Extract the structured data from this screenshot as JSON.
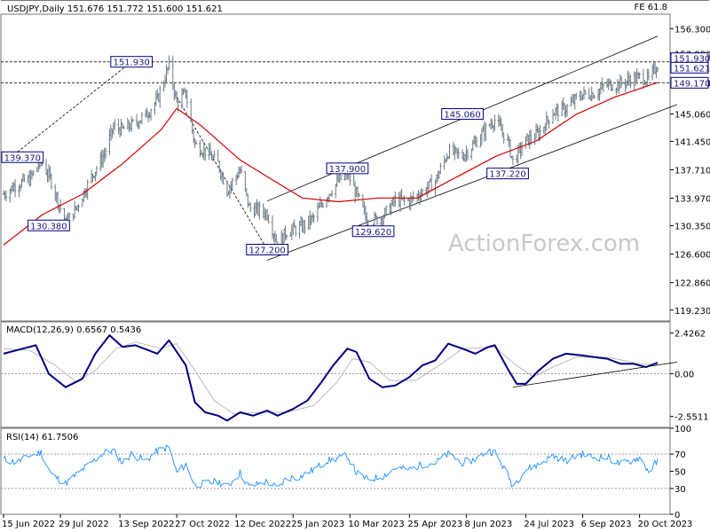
{
  "header": {
    "title": "USDJPY,Daily  151.676 151.772 151.600 151.621",
    "fe_label": "FE 61.8"
  },
  "watermark": "ActionForex.com",
  "chart_data": {
    "type": "candlestick",
    "price_panel": {
      "ylim": [
        117.8,
        158.2
      ],
      "y_ticks": [
        "156.300",
        "153.000",
        "149.170",
        "145.060",
        "141.450",
        "137.710",
        "133.970",
        "130.350",
        "126.600",
        "122.860",
        "119.230"
      ],
      "y_tick_values": [
        156.3,
        153.0,
        149.17,
        145.06,
        141.45,
        137.71,
        133.97,
        130.35,
        126.6,
        122.86,
        119.23
      ],
      "axis_badges": [
        {
          "label": "151.930",
          "value": 151.93
        },
        {
          "label": "151.621",
          "value": 151.621
        },
        {
          "label": "149.170",
          "value": 149.17
        }
      ],
      "horizontal_lines": [
        151.93,
        149.17
      ],
      "price_labels": [
        {
          "text": "139.370",
          "date": "2022-06-15",
          "value": 139.37
        },
        {
          "text": "130.380",
          "date": "2022-07-20",
          "value": 130.38
        },
        {
          "text": "151.930",
          "date": "2022-09-22",
          "value": 151.93
        },
        {
          "text": "127.200",
          "date": "2023-01-05",
          "value": 127.2
        },
        {
          "text": "137.900",
          "date": "2023-03-08",
          "value": 137.9
        },
        {
          "text": "129.620",
          "date": "2023-03-28",
          "value": 129.62
        },
        {
          "text": "145.060",
          "date": "2023-06-05",
          "value": 145.06
        },
        {
          "text": "137.220",
          "date": "2023-07-10",
          "value": 137.22
        }
      ],
      "close_series": {
        "name": "USDJPY",
        "points": [
          [
            "2022-06-15",
            134.5
          ],
          [
            "2022-06-25",
            135.8
          ],
          [
            "2022-07-05",
            136.4
          ],
          [
            "2022-07-14",
            138.9
          ],
          [
            "2022-07-22",
            136.2
          ],
          [
            "2022-08-02",
            130.6
          ],
          [
            "2022-08-10",
            132.6
          ],
          [
            "2022-08-22",
            136.8
          ],
          [
            "2022-09-01",
            139.8
          ],
          [
            "2022-09-08",
            143.3
          ],
          [
            "2022-09-15",
            143.0
          ],
          [
            "2022-09-22",
            143.6
          ],
          [
            "2022-10-03",
            144.9
          ],
          [
            "2022-10-12",
            146.9
          ],
          [
            "2022-10-21",
            151.5
          ],
          [
            "2022-10-27",
            146.5
          ],
          [
            "2022-11-03",
            147.8
          ],
          [
            "2022-11-10",
            141.0
          ],
          [
            "2022-11-18",
            140.2
          ],
          [
            "2022-11-28",
            138.5
          ],
          [
            "2022-12-05",
            135.0
          ],
          [
            "2022-12-15",
            137.7
          ],
          [
            "2022-12-22",
            132.7
          ],
          [
            "2023-01-05",
            132.0
          ],
          [
            "2023-01-13",
            127.9
          ],
          [
            "2023-01-20",
            129.6
          ],
          [
            "2023-01-31",
            130.1
          ],
          [
            "2023-02-10",
            131.4
          ],
          [
            "2023-02-20",
            134.3
          ],
          [
            "2023-03-01",
            136.2
          ],
          [
            "2023-03-08",
            137.2
          ],
          [
            "2023-03-15",
            134.5
          ],
          [
            "2023-03-24",
            130.7
          ],
          [
            "2023-04-04",
            131.5
          ],
          [
            "2023-04-14",
            133.7
          ],
          [
            "2023-04-25",
            133.6
          ],
          [
            "2023-05-05",
            134.8
          ],
          [
            "2023-05-15",
            136.2
          ],
          [
            "2023-05-25",
            140.1
          ],
          [
            "2023-06-05",
            139.5
          ],
          [
            "2023-06-15",
            141.3
          ],
          [
            "2023-06-25",
            143.5
          ],
          [
            "2023-06-30",
            144.3
          ],
          [
            "2023-07-10",
            141.5
          ],
          [
            "2023-07-14",
            138.8
          ],
          [
            "2023-07-24",
            141.5
          ],
          [
            "2023-08-03",
            142.5
          ],
          [
            "2023-08-14",
            145.3
          ],
          [
            "2023-08-24",
            145.8
          ],
          [
            "2023-09-05",
            147.6
          ],
          [
            "2023-09-15",
            147.8
          ],
          [
            "2023-09-25",
            148.9
          ],
          [
            "2023-10-05",
            149.0
          ],
          [
            "2023-10-13",
            149.6
          ],
          [
            "2023-10-20",
            149.9
          ],
          [
            "2023-10-27",
            149.6
          ],
          [
            "2023-11-03",
            151.6
          ]
        ]
      },
      "ma_series": {
        "points": [
          [
            "2022-06-15",
            127.8
          ],
          [
            "2022-07-15",
            131.8
          ],
          [
            "2022-08-15",
            134.5
          ],
          [
            "2022-09-15",
            138.5
          ],
          [
            "2022-10-15",
            143.0
          ],
          [
            "2022-10-27",
            145.8
          ],
          [
            "2022-11-15",
            143.5
          ],
          [
            "2022-12-15",
            139.0
          ],
          [
            "2023-01-05",
            136.8
          ],
          [
            "2023-02-01",
            134.0
          ],
          [
            "2023-03-01",
            133.5
          ],
          [
            "2023-04-01",
            134.0
          ],
          [
            "2023-05-01",
            134.0
          ],
          [
            "2023-06-01",
            136.8
          ],
          [
            "2023-07-01",
            139.5
          ],
          [
            "2023-08-01",
            141.5
          ],
          [
            "2023-09-01",
            145.0
          ],
          [
            "2023-10-01",
            147.3
          ],
          [
            "2023-11-03",
            149.2
          ]
        ]
      },
      "trendlines": [
        {
          "style": "dashed",
          "from": [
            "2022-06-15",
            138.6
          ],
          "to": [
            "2022-09-22",
            151.93
          ]
        },
        {
          "style": "dashed",
          "from": [
            "2022-10-27",
            147.3
          ],
          "to": [
            "2023-01-05",
            127.2
          ]
        },
        {
          "style": "solid",
          "from": [
            "2023-01-05",
            133.6
          ],
          "to": [
            "2023-11-03",
            155.3
          ]
        },
        {
          "style": "solid",
          "from": [
            "2023-01-05",
            125.8
          ],
          "to": [
            "2023-11-18",
            146.3
          ]
        }
      ]
    },
    "macd_panel": {
      "title": "MACD(12,26,9) 0.6567 0.5436",
      "ylim": [
        -3.2,
        3.1
      ],
      "y_ticks": [
        "2.4262",
        "0.00",
        "-2.5511"
      ],
      "y_tick_values": [
        2.4262,
        0.0,
        -2.5511
      ],
      "macd": [
        [
          "2022-06-15",
          1.2
        ],
        [
          "2022-06-30",
          1.5
        ],
        [
          "2022-07-10",
          1.7
        ],
        [
          "2022-07-20",
          0.0
        ],
        [
          "2022-08-02",
          -0.8
        ],
        [
          "2022-08-15",
          -0.3
        ],
        [
          "2022-08-25",
          1.2
        ],
        [
          "2022-09-05",
          2.3
        ],
        [
          "2022-09-15",
          1.6
        ],
        [
          "2022-09-25",
          1.7
        ],
        [
          "2022-10-12",
          1.2
        ],
        [
          "2022-10-21",
          2.0
        ],
        [
          "2022-11-03",
          0.5
        ],
        [
          "2022-11-10",
          -1.7
        ],
        [
          "2022-11-18",
          -2.3
        ],
        [
          "2022-11-28",
          -2.5
        ],
        [
          "2022-12-05",
          -2.8
        ],
        [
          "2022-12-15",
          -2.3
        ],
        [
          "2022-12-25",
          -2.5
        ],
        [
          "2023-01-05",
          -2.2
        ],
        [
          "2023-01-13",
          -2.5
        ],
        [
          "2023-01-25",
          -2.1
        ],
        [
          "2023-02-05",
          -1.6
        ],
        [
          "2023-02-15",
          -0.6
        ],
        [
          "2023-02-25",
          0.5
        ],
        [
          "2023-03-08",
          1.5
        ],
        [
          "2023-03-15",
          1.3
        ],
        [
          "2023-03-25",
          -0.3
        ],
        [
          "2023-04-04",
          -0.8
        ],
        [
          "2023-04-14",
          -0.7
        ],
        [
          "2023-04-25",
          -0.2
        ],
        [
          "2023-05-05",
          0.5
        ],
        [
          "2023-05-15",
          0.8
        ],
        [
          "2023-05-25",
          1.8
        ],
        [
          "2023-06-05",
          1.5
        ],
        [
          "2023-06-15",
          1.2
        ],
        [
          "2023-06-25",
          1.6
        ],
        [
          "2023-06-30",
          1.7
        ],
        [
          "2023-07-10",
          0.3
        ],
        [
          "2023-07-17",
          -0.6
        ],
        [
          "2023-07-24",
          -0.6
        ],
        [
          "2023-08-03",
          0.2
        ],
        [
          "2023-08-14",
          0.9
        ],
        [
          "2023-08-24",
          1.2
        ],
        [
          "2023-09-05",
          1.1
        ],
        [
          "2023-09-15",
          1.0
        ],
        [
          "2023-09-25",
          0.9
        ],
        [
          "2023-10-05",
          0.6
        ],
        [
          "2023-10-15",
          0.6
        ],
        [
          "2023-10-25",
          0.4
        ],
        [
          "2023-11-03",
          0.66
        ]
      ],
      "signal": [
        [
          "2022-06-15",
          1.5
        ],
        [
          "2022-07-05",
          1.4
        ],
        [
          "2022-07-25",
          0.5
        ],
        [
          "2022-08-10",
          -0.5
        ],
        [
          "2022-08-25",
          0.2
        ],
        [
          "2022-09-10",
          1.5
        ],
        [
          "2022-09-25",
          1.9
        ],
        [
          "2022-10-15",
          1.5
        ],
        [
          "2022-10-27",
          1.8
        ],
        [
          "2022-11-10",
          0.2
        ],
        [
          "2022-11-25",
          -1.6
        ],
        [
          "2022-12-10",
          -2.4
        ],
        [
          "2023-01-01",
          -2.3
        ],
        [
          "2023-01-20",
          -2.3
        ],
        [
          "2023-02-10",
          -1.9
        ],
        [
          "2023-02-28",
          -0.5
        ],
        [
          "2023-03-12",
          0.9
        ],
        [
          "2023-03-25",
          0.7
        ],
        [
          "2023-04-10",
          -0.4
        ],
        [
          "2023-04-30",
          -0.4
        ],
        [
          "2023-05-20",
          0.6
        ],
        [
          "2023-06-05",
          1.5
        ],
        [
          "2023-06-30",
          1.6
        ],
        [
          "2023-07-15",
          0.6
        ],
        [
          "2023-07-30",
          -0.2
        ],
        [
          "2023-08-14",
          0.4
        ],
        [
          "2023-09-01",
          1.0
        ],
        [
          "2023-09-25",
          1.0
        ],
        [
          "2023-10-20",
          0.6
        ],
        [
          "2023-11-03",
          0.54
        ]
      ],
      "trendline": {
        "from": [
          "2023-07-14",
          -0.8
        ],
        "to": [
          "2023-11-18",
          0.7
        ]
      }
    },
    "rsi_panel": {
      "title": "RSI(14) 61.7506",
      "ylim": [
        0,
        100
      ],
      "y_ticks": [
        "100",
        "70",
        "50",
        "30",
        "0"
      ],
      "y_tick_values": [
        100,
        70,
        50,
        30,
        0
      ],
      "dotted_levels": [
        70,
        30
      ],
      "rsi": [
        [
          "2022-06-15",
          64
        ],
        [
          "2022-06-25",
          60
        ],
        [
          "2022-07-05",
          68
        ],
        [
          "2022-07-14",
          72
        ],
        [
          "2022-07-22",
          46
        ],
        [
          "2022-08-02",
          36
        ],
        [
          "2022-08-12",
          48
        ],
        [
          "2022-08-22",
          60
        ],
        [
          "2022-09-01",
          72
        ],
        [
          "2022-09-08",
          74
        ],
        [
          "2022-09-15",
          60
        ],
        [
          "2022-09-22",
          70
        ],
        [
          "2022-10-03",
          62
        ],
        [
          "2022-10-12",
          74
        ],
        [
          "2022-10-21",
          78
        ],
        [
          "2022-10-27",
          48
        ],
        [
          "2022-11-03",
          58
        ],
        [
          "2022-11-10",
          34
        ],
        [
          "2022-11-18",
          36
        ],
        [
          "2022-11-28",
          38
        ],
        [
          "2022-12-05",
          32
        ],
        [
          "2022-12-15",
          48
        ],
        [
          "2022-12-22",
          32
        ],
        [
          "2023-01-05",
          38
        ],
        [
          "2023-01-13",
          30
        ],
        [
          "2023-01-20",
          42
        ],
        [
          "2023-01-31",
          44
        ],
        [
          "2023-02-10",
          52
        ],
        [
          "2023-02-20",
          62
        ],
        [
          "2023-03-01",
          65
        ],
        [
          "2023-03-08",
          68
        ],
        [
          "2023-03-15",
          48
        ],
        [
          "2023-03-24",
          40
        ],
        [
          "2023-04-04",
          44
        ],
        [
          "2023-04-14",
          54
        ],
        [
          "2023-04-25",
          52
        ],
        [
          "2023-05-05",
          58
        ],
        [
          "2023-05-15",
          60
        ],
        [
          "2023-05-25",
          70
        ],
        [
          "2023-06-05",
          60
        ],
        [
          "2023-06-15",
          64
        ],
        [
          "2023-06-25",
          74
        ],
        [
          "2023-06-30",
          72
        ],
        [
          "2023-07-10",
          46
        ],
        [
          "2023-07-14",
          33
        ],
        [
          "2023-07-24",
          52
        ],
        [
          "2023-08-03",
          58
        ],
        [
          "2023-08-14",
          68
        ],
        [
          "2023-08-24",
          62
        ],
        [
          "2023-09-05",
          70
        ],
        [
          "2023-09-15",
          66
        ],
        [
          "2023-09-25",
          66
        ],
        [
          "2023-10-05",
          58
        ],
        [
          "2023-10-13",
          62
        ],
        [
          "2023-10-20",
          66
        ],
        [
          "2023-10-27",
          50
        ],
        [
          "2023-11-03",
          61.75
        ]
      ]
    },
    "x_axis": {
      "labels": [
        "15 Jun 2022",
        "29 Jul 2022",
        "13 Sep 2022",
        "27 Oct 2022",
        "12 Dec 2022",
        "25 Jan 2023",
        "10 Mar 2023",
        "25 Apr 2023",
        "8 Jun 2023",
        "24 Jul 2023",
        "6 Sep 2023",
        "20 Oct 2023"
      ],
      "label_dates": [
        "2022-06-15",
        "2022-07-29",
        "2022-09-13",
        "2022-10-27",
        "2022-12-12",
        "2023-01-25",
        "2023-03-10",
        "2023-04-25",
        "2023-06-08",
        "2023-07-24",
        "2023-09-06",
        "2023-10-20"
      ]
    }
  },
  "colors": {
    "candle": "#6b7b85",
    "ma": "#d00000",
    "macd": "#000080",
    "signal": "#bbbbbb",
    "rsi": "#1e90ff",
    "badge_fill": "#ffffff",
    "badge_border": "#000080",
    "grid_frame": "#777777",
    "trend": "#000000"
  }
}
